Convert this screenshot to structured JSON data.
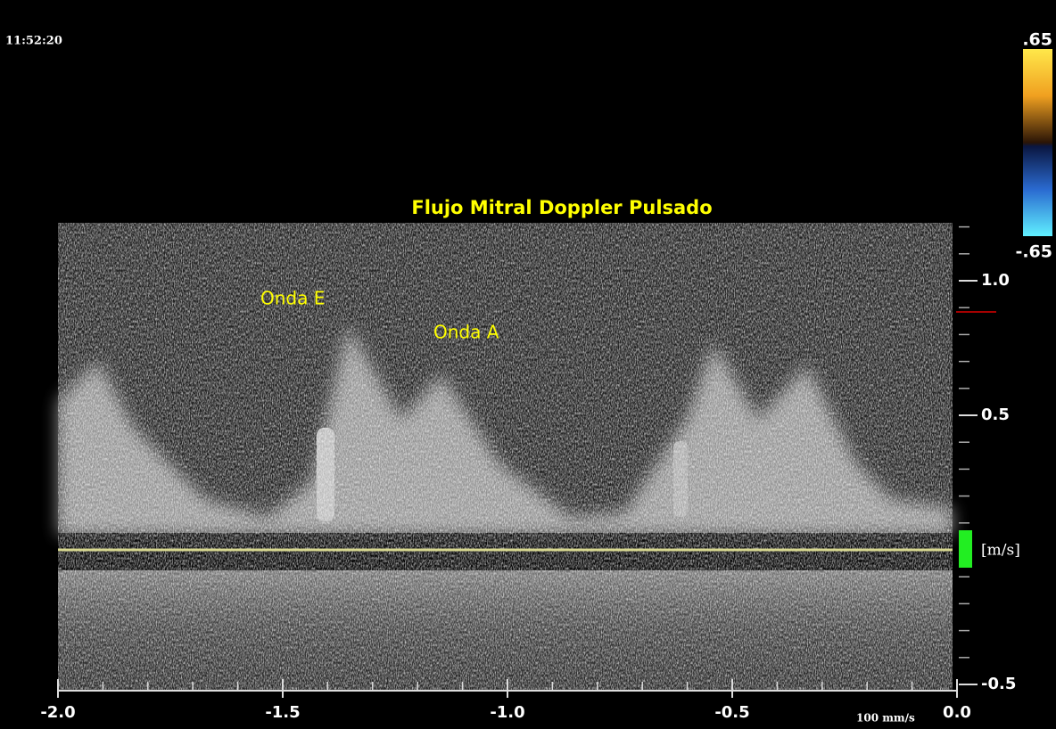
{
  "chart_data": {
    "type": "spectral-doppler",
    "time": "11:52:20",
    "title": "Flujo Mitral Doppler Pulsado",
    "annotations": [
      "Onda E",
      "Onda A"
    ],
    "y_unit": "[m/s]",
    "sweep_speed": "100 mm/s",
    "xlim": [
      -2.0,
      0.0
    ],
    "ylim": [
      -0.5,
      1.2
    ],
    "xticks": [
      {
        "value": -2.0,
        "label": "-2.0"
      },
      {
        "value": -1.5,
        "label": "-1.5"
      },
      {
        "value": -1.0,
        "label": "-1.0"
      },
      {
        "value": -0.5,
        "label": "-0.5"
      },
      {
        "value": 0.0,
        "label": "0.0"
      }
    ],
    "x_minor_ticks": [
      -1.9,
      -1.8,
      -1.7,
      -1.6,
      -1.4,
      -1.3,
      -1.2,
      -1.1,
      -0.9,
      -0.8,
      -0.7,
      -0.6,
      -0.4,
      -0.3,
      -0.2,
      -0.1
    ],
    "yticks": [
      {
        "value": 1.0,
        "label": "1.0"
      },
      {
        "value": 0.5,
        "label": "0.5"
      },
      {
        "value": -0.5,
        "label": "-0.5"
      }
    ],
    "y_minor_ticks": [
      1.2,
      1.1,
      0.9,
      0.8,
      0.7,
      0.6,
      0.4,
      0.3,
      0.2,
      0.1,
      -0.1,
      -0.2,
      -0.3,
      -0.4
    ],
    "colorbar_ticks": [
      {
        "value": 0.65,
        "label": ".65"
      },
      {
        "value": -0.65,
        "label": "-.65"
      }
    ]
  }
}
